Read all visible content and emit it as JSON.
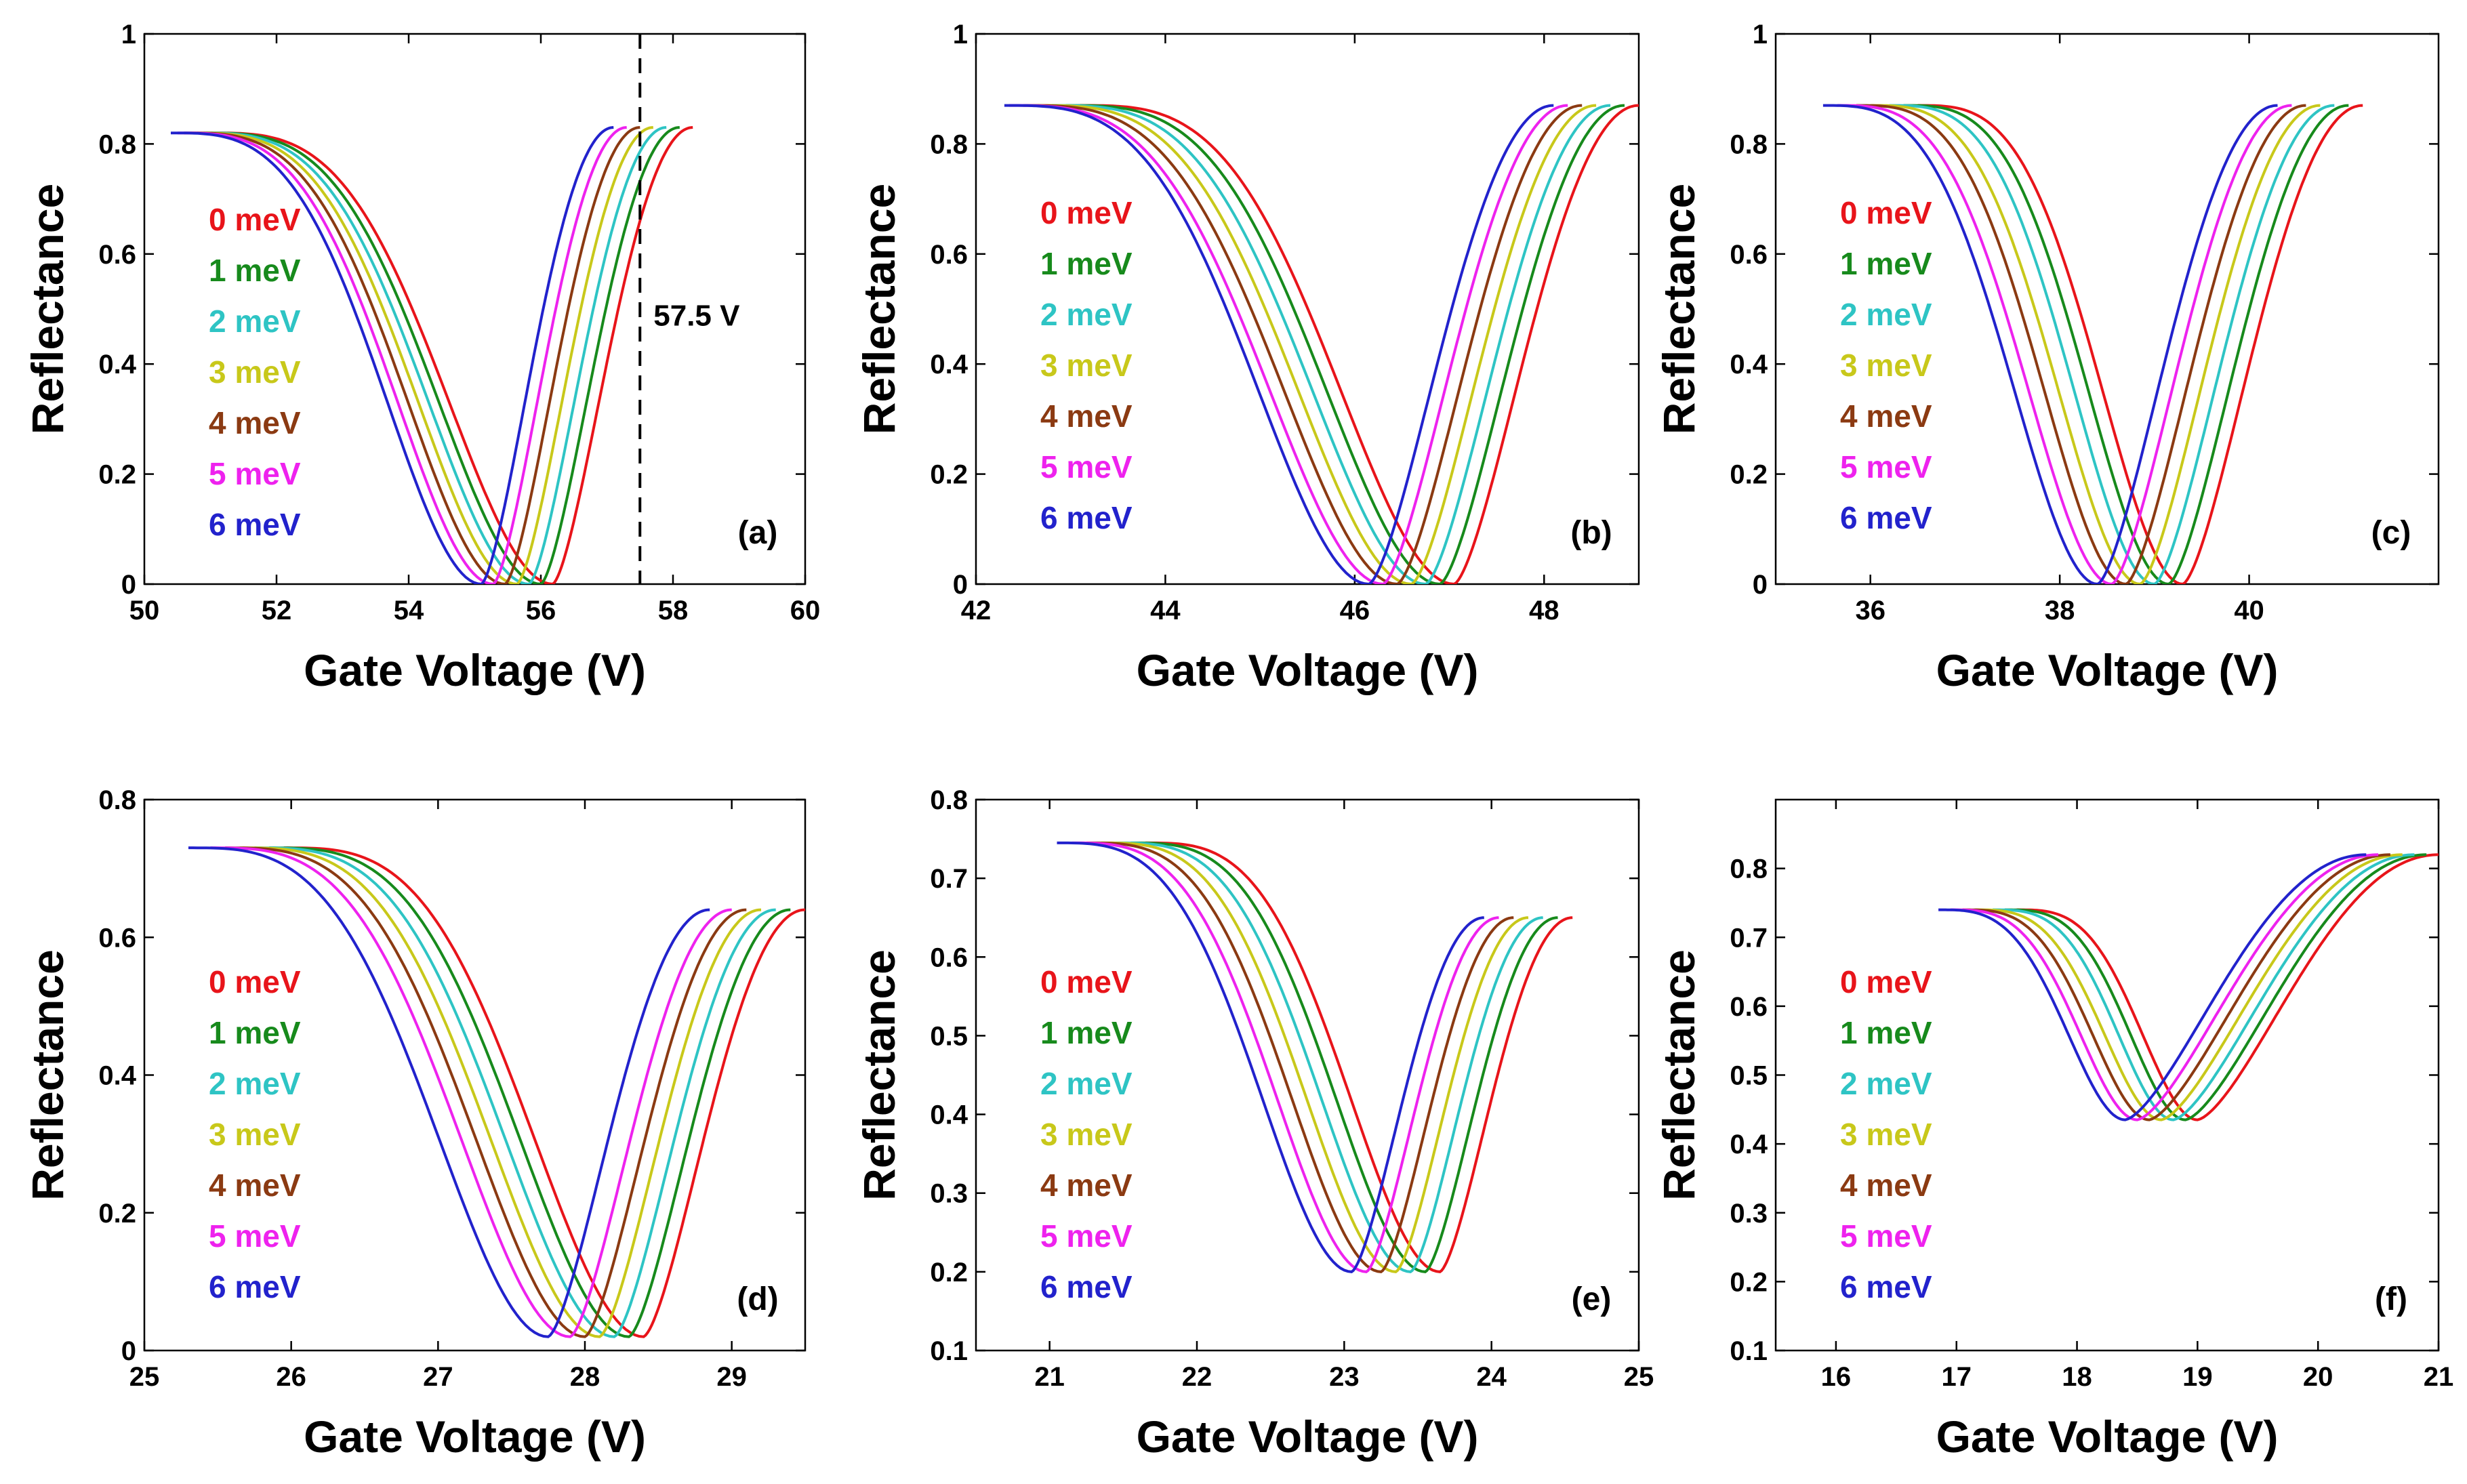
{
  "colors": [
    "#e8141a",
    "#178a1c",
    "#2ec4c4",
    "#c8c81a",
    "#8b3a12",
    "#ee22ee",
    "#2222cc"
  ],
  "chart_data": [
    {
      "type": "line",
      "panel_label": "(a)",
      "xlabel": "Gate Voltage (V)",
      "ylabel": "Reflectance",
      "xlim": [
        50,
        60
      ],
      "ylim": [
        0,
        1
      ],
      "xticks": [
        "50",
        "52",
        "54",
        "56",
        "58",
        "60"
      ],
      "yticks": [
        "0",
        "0.2",
        "0.4",
        "0.6",
        "0.8",
        "1"
      ],
      "legend": [
        "0 meV",
        "1 meV",
        "2 meV",
        "3 meV",
        "4 meV",
        "5 meV",
        "6 meV"
      ],
      "series_params": {
        "x_start": [
          51.0,
          50.9,
          50.8,
          50.7,
          50.6,
          50.5,
          50.4
        ],
        "x_min": [
          56.18,
          56.0,
          55.82,
          55.64,
          55.46,
          55.28,
          55.1
        ],
        "x_end": [
          58.3,
          58.1,
          57.9,
          57.7,
          57.5,
          57.3,
          57.1
        ],
        "y_base": 0.82,
        "y_min": 0.0,
        "y_end": 0.83
      },
      "annotation": {
        "type": "vline",
        "x": 57.5,
        "text": "57.5 V"
      }
    },
    {
      "type": "line",
      "panel_label": "(b)",
      "xlabel": "Gate Voltage (V)",
      "ylabel": "Reflectance",
      "xlim": [
        42,
        49
      ],
      "ylim": [
        0,
        1
      ],
      "xticks": [
        "42",
        "44",
        "46",
        "48"
      ],
      "yticks": [
        "0",
        "0.2",
        "0.4",
        "0.6",
        "0.8",
        "1"
      ],
      "legend": [
        "0 meV",
        "1 meV",
        "2 meV",
        "3 meV",
        "4 meV",
        "5 meV",
        "6 meV"
      ],
      "series_params": {
        "x_start": [
          43.1,
          42.95,
          42.8,
          42.65,
          42.5,
          42.35,
          42.3
        ],
        "x_min": [
          47.05,
          46.9,
          46.75,
          46.6,
          46.45,
          46.3,
          46.15
        ],
        "x_end": [
          49.0,
          48.85,
          48.7,
          48.55,
          48.4,
          48.25,
          48.1
        ],
        "y_base": 0.87,
        "y_min": 0.0,
        "y_end": 0.87
      }
    },
    {
      "type": "line",
      "panel_label": "(c)",
      "xlabel": "Gate Voltage (V)",
      "ylabel": "Reflectance",
      "xlim": [
        35,
        42
      ],
      "ylim": [
        0,
        1
      ],
      "xticks": [
        "36",
        "38",
        "40"
      ],
      "yticks": [
        "0",
        "0.2",
        "0.4",
        "0.6",
        "0.8",
        "1"
      ],
      "legend": [
        "0 meV",
        "1 meV",
        "2 meV",
        "3 meV",
        "4 meV",
        "5 meV",
        "6 meV"
      ],
      "series_params": {
        "x_start": [
          36.5,
          36.35,
          36.2,
          36.0,
          35.85,
          35.65,
          35.5
        ],
        "x_min": [
          39.3,
          39.15,
          39.0,
          38.85,
          38.7,
          38.55,
          38.4
        ],
        "x_end": [
          41.2,
          41.05,
          40.9,
          40.75,
          40.6,
          40.45,
          40.3
        ],
        "y_base": 0.87,
        "y_min": 0.0,
        "y_end": 0.87
      }
    },
    {
      "type": "line",
      "panel_label": "(d)",
      "xlabel": "Gate Voltage (V)",
      "ylabel": "Reflectance",
      "xlim": [
        25,
        29.5
      ],
      "ylim": [
        0,
        0.8
      ],
      "xticks": [
        "25",
        "26",
        "27",
        "28",
        "29"
      ],
      "yticks": [
        "0",
        "0.2",
        "0.4",
        "0.6",
        "0.8"
      ],
      "legend": [
        "0 meV",
        "1 meV",
        "2 meV",
        "3 meV",
        "4 meV",
        "5 meV",
        "6 meV"
      ],
      "series_params": {
        "x_start": [
          25.95,
          25.85,
          25.75,
          25.65,
          25.55,
          25.45,
          25.3
        ],
        "x_min": [
          28.4,
          28.3,
          28.2,
          28.1,
          28.0,
          27.9,
          27.75
        ],
        "x_end": [
          29.5,
          29.4,
          29.3,
          29.2,
          29.1,
          29.0,
          28.85
        ],
        "y_base": 0.73,
        "y_min": 0.02,
        "y_end": 0.64
      }
    },
    {
      "type": "line",
      "panel_label": "(e)",
      "xlabel": "Gate Voltage (V)",
      "ylabel": "Reflectance",
      "xlim": [
        20.5,
        25
      ],
      "ylim": [
        0.1,
        0.8
      ],
      "xticks": [
        "21",
        "22",
        "23",
        "24",
        "25"
      ],
      "yticks": [
        "0.1",
        "0.2",
        "0.3",
        "0.4",
        "0.5",
        "0.6",
        "0.7",
        "0.8"
      ],
      "legend": [
        "0 meV",
        "1 meV",
        "2 meV",
        "3 meV",
        "4 meV",
        "5 meV",
        "6 meV"
      ],
      "series_params": {
        "x_start": [
          21.65,
          21.55,
          21.45,
          21.35,
          21.25,
          21.15,
          21.05
        ],
        "x_min": [
          23.65,
          23.55,
          23.45,
          23.35,
          23.25,
          23.15,
          23.05
        ],
        "x_end": [
          24.55,
          24.45,
          24.35,
          24.25,
          24.15,
          24.05,
          23.95
        ],
        "y_base": 0.745,
        "y_min": 0.2,
        "y_end": 0.65
      }
    },
    {
      "type": "line",
      "panel_label": "(f)",
      "xlabel": "Gate Voltage (V)",
      "ylabel": "Reflectance",
      "xlim": [
        15.5,
        21
      ],
      "ylim": [
        0.1,
        0.9
      ],
      "xticks": [
        "16",
        "17",
        "18",
        "19",
        "20",
        "21"
      ],
      "yticks": [
        "0.1",
        "0.2",
        "0.3",
        "0.4",
        "0.5",
        "0.6",
        "0.7",
        "0.8"
      ],
      "legend": [
        "0 meV",
        "1 meV",
        "2 meV",
        "3 meV",
        "4 meV",
        "5 meV",
        "6 meV"
      ],
      "series_params": {
        "x_start": [
          17.5,
          17.4,
          17.3,
          17.15,
          17.05,
          16.95,
          16.85
        ],
        "x_min": [
          19.0,
          18.9,
          18.8,
          18.7,
          18.6,
          18.5,
          18.4
        ],
        "x_end": [
          21.0,
          20.9,
          20.8,
          20.7,
          20.6,
          20.5,
          20.4
        ],
        "y_base": 0.74,
        "y_min": 0.435,
        "y_end": 0.82
      }
    }
  ]
}
